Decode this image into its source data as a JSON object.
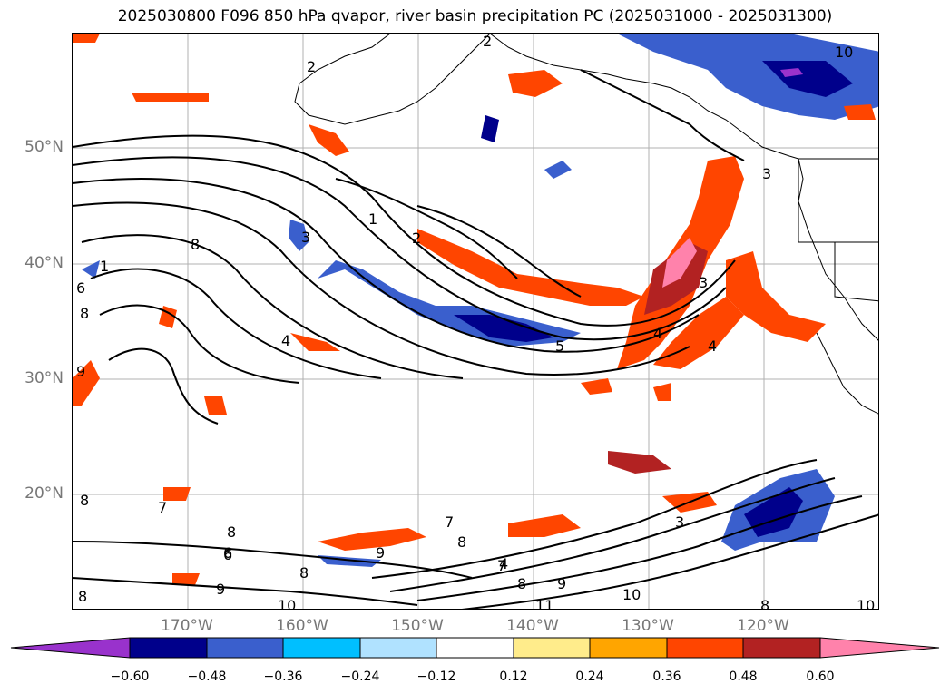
{
  "title": "2025030800 F096 850 hPa qvapor, river basin precipitation PC (2025031000 - 2025031300)",
  "lat_labels": [
    "50°N",
    "40°N",
    "30°N",
    "20°N"
  ],
  "lon_labels": [
    "170°W",
    "160°W",
    "150°W",
    "140°W",
    "130°W",
    "120°W"
  ],
  "colorbar": {
    "ticks": [
      "−0.60",
      "−0.48",
      "−0.36",
      "−0.24",
      "−0.12",
      "0.12",
      "0.24",
      "0.36",
      "0.48",
      "0.60"
    ],
    "colors": [
      "#9932cc",
      "#00008b",
      "#3a5fcd",
      "#00bfff",
      "#b0e2ff",
      "#ffffff",
      "#ffec8b",
      "#ffa500",
      "#ff4500",
      "#b22222",
      "#ff82ab"
    ]
  },
  "contour_labels": [
    "2",
    "2",
    "1",
    "2",
    "3",
    "3",
    "10",
    "4",
    "8",
    "1",
    "6",
    "8",
    "4",
    "5",
    "3",
    "4",
    "9",
    "8",
    "7",
    "6",
    "8",
    "7",
    "8",
    "9",
    "7",
    "8",
    "9",
    "10",
    "11",
    "8",
    "3",
    "4",
    "8",
    "10",
    "9",
    "8",
    "6",
    "10"
  ]
}
